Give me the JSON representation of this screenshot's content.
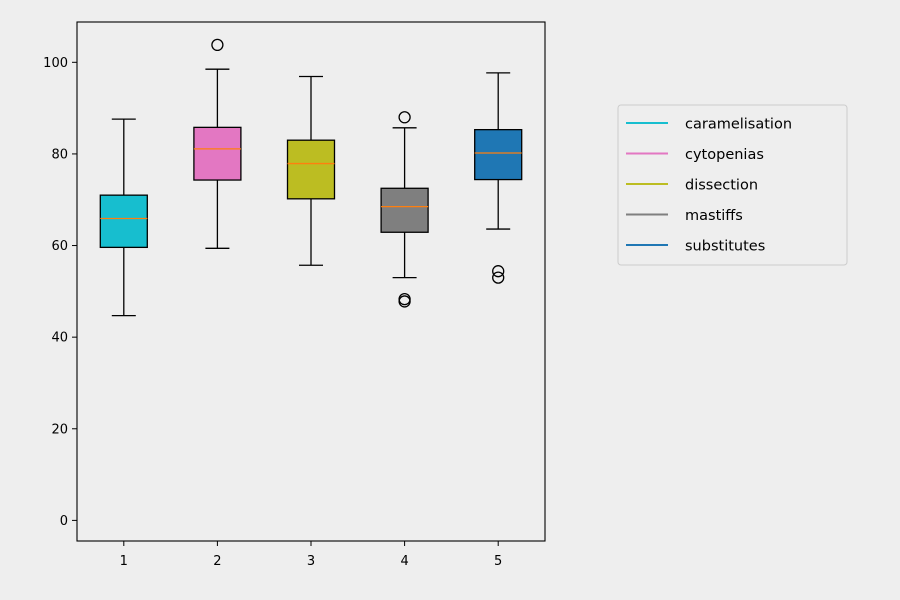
{
  "chart_data": {
    "type": "box",
    "title": "",
    "xlabel": "",
    "ylabel": "",
    "categories": [
      "1",
      "2",
      "3",
      "4",
      "5"
    ],
    "ylim": [
      -4.5,
      108.8
    ],
    "yticks": [
      0,
      20,
      40,
      60,
      80,
      100
    ],
    "grid": false,
    "legend_position": "right, outside plot",
    "median_color": "#ff7f0e",
    "series": [
      {
        "name": "caramelisation",
        "color": "#17becf",
        "whisker_low": 44.7,
        "q1": 59.6,
        "median": 65.9,
        "q3": 71.0,
        "whisker_high": 87.6,
        "outliers": []
      },
      {
        "name": "cytopenias",
        "color": "#e377c2",
        "whisker_low": 59.4,
        "q1": 74.3,
        "median": 81.1,
        "q3": 85.8,
        "whisker_high": 98.5,
        "outliers": [
          103.8
        ]
      },
      {
        "name": "dissection",
        "color": "#bcbd22",
        "whisker_low": 55.7,
        "q1": 70.2,
        "median": 77.9,
        "q3": 83.0,
        "whisker_high": 96.9,
        "outliers": []
      },
      {
        "name": "mastiffs",
        "color": "#7f7f7f",
        "whisker_low": 53.0,
        "q1": 62.9,
        "median": 68.5,
        "q3": 72.5,
        "whisker_high": 85.7,
        "outliers": [
          88.0,
          48.3,
          47.8
        ]
      },
      {
        "name": "substitutes",
        "color": "#1f77b4",
        "whisker_low": 63.6,
        "q1": 74.4,
        "median": 80.2,
        "q3": 85.3,
        "whisker_high": 97.7,
        "outliers": [
          54.4,
          53.0
        ]
      }
    ]
  }
}
